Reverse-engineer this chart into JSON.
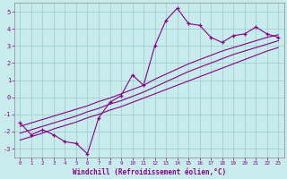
{
  "xlabel": "Windchill (Refroidissement éolien,°C)",
  "bg_color": "#c8ecec",
  "line_color": "#880088",
  "grid_color": "#99cccc",
  "x_data": [
    0,
    1,
    2,
    3,
    4,
    5,
    6,
    7,
    8,
    9,
    10,
    11,
    12,
    13,
    14,
    15,
    16,
    17,
    18,
    19,
    20,
    21,
    22,
    23
  ],
  "y_line1": [
    -1.5,
    -2.2,
    -1.9,
    -2.2,
    -2.6,
    -2.7,
    -3.3,
    -1.2,
    -0.3,
    0.1,
    1.3,
    0.7,
    3.0,
    4.5,
    5.2,
    4.3,
    4.2,
    3.5,
    3.2,
    3.6,
    3.7,
    4.1,
    3.7,
    3.5
  ],
  "y_reg1": [
    -2.5,
    -2.3,
    -2.1,
    -1.85,
    -1.65,
    -1.45,
    -1.2,
    -1.0,
    -0.75,
    -0.55,
    -0.3,
    -0.05,
    0.2,
    0.45,
    0.7,
    0.95,
    1.2,
    1.45,
    1.7,
    1.95,
    2.2,
    2.45,
    2.7,
    2.9
  ],
  "y_reg2": [
    -2.1,
    -1.9,
    -1.7,
    -1.5,
    -1.3,
    -1.1,
    -0.85,
    -0.65,
    -0.4,
    -0.2,
    0.05,
    0.3,
    0.6,
    0.9,
    1.2,
    1.5,
    1.75,
    2.0,
    2.25,
    2.5,
    2.7,
    2.9,
    3.1,
    3.3
  ],
  "y_reg3": [
    -1.7,
    -1.5,
    -1.3,
    -1.1,
    -0.9,
    -0.7,
    -0.5,
    -0.25,
    -0.05,
    0.2,
    0.45,
    0.7,
    1.05,
    1.35,
    1.65,
    1.95,
    2.2,
    2.45,
    2.7,
    2.9,
    3.1,
    3.3,
    3.5,
    3.65
  ],
  "ylim": [
    -3.5,
    5.5
  ],
  "xlim": [
    -0.5,
    23.5
  ],
  "yticks": [
    -3,
    -2,
    -1,
    0,
    1,
    2,
    3,
    4,
    5
  ],
  "xticks": [
    0,
    1,
    2,
    3,
    4,
    5,
    6,
    7,
    8,
    9,
    10,
    11,
    12,
    13,
    14,
    15,
    16,
    17,
    18,
    19,
    20,
    21,
    22,
    23
  ]
}
